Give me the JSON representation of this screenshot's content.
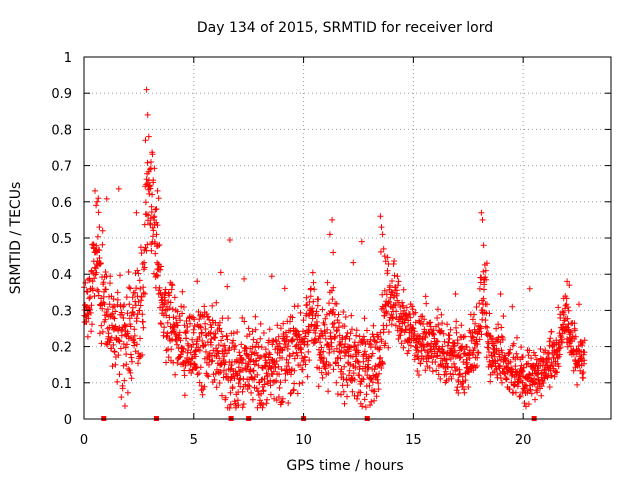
{
  "chart_data": {
    "type": "scatter",
    "title": "Day 134 of 2015, SRMTID for receiver lord",
    "xlabel": "GPS time / hours",
    "ylabel": "SRMTID / TECUs",
    "xlim": [
      0,
      24
    ],
    "ylim": [
      0,
      1
    ],
    "xticks": [
      "0",
      "5",
      "10",
      "15",
      "20"
    ],
    "yticks": [
      "0",
      "0.1",
      "0.2",
      "0.3",
      "0.4",
      "0.5",
      "0.6",
      "0.7",
      "0.8",
      "0.9",
      "1"
    ],
    "grid": true,
    "marker": "+",
    "series_color": "#ff0000",
    "baseline_markers_x": [
      0.9,
      3.3,
      6.7,
      7.5,
      10.0,
      12.9,
      20.5
    ],
    "baseline_markers_y": 0,
    "envelope": {
      "x": [
        0.0,
        0.3,
        0.5,
        0.7,
        1.0,
        1.5,
        2.0,
        2.5,
        2.7,
        2.9,
        3.1,
        3.3,
        3.5,
        3.8,
        4.2,
        4.7,
        5.0,
        5.5,
        6.0,
        6.5,
        7.0,
        7.3,
        7.6,
        8.0,
        8.5,
        9.0,
        9.5,
        10.0,
        10.3,
        10.6,
        11.0,
        11.3,
        11.6,
        12.0,
        12.5,
        13.0,
        13.5,
        13.7,
        14.0,
        14.3,
        14.7,
        15.0,
        15.5,
        16.0,
        16.5,
        17.0,
        17.5,
        18.0,
        18.2,
        18.4,
        18.8,
        19.2,
        19.6,
        20.0,
        20.5,
        21.0,
        21.5,
        21.9,
        22.2,
        22.5,
        22.8
      ],
      "y": [
        0.28,
        0.33,
        0.45,
        0.4,
        0.27,
        0.24,
        0.22,
        0.26,
        0.35,
        0.62,
        0.55,
        0.48,
        0.33,
        0.26,
        0.22,
        0.2,
        0.22,
        0.2,
        0.19,
        0.15,
        0.13,
        0.17,
        0.16,
        0.14,
        0.15,
        0.16,
        0.17,
        0.2,
        0.28,
        0.25,
        0.18,
        0.26,
        0.18,
        0.16,
        0.15,
        0.14,
        0.15,
        0.32,
        0.34,
        0.3,
        0.26,
        0.22,
        0.21,
        0.19,
        0.18,
        0.17,
        0.16,
        0.24,
        0.34,
        0.2,
        0.17,
        0.15,
        0.12,
        0.11,
        0.13,
        0.13,
        0.17,
        0.28,
        0.22,
        0.16,
        0.17
      ]
    },
    "spread": {
      "x": [
        0.0,
        3.0,
        3.5,
        13.7,
        14.5,
        18.3,
        19.0,
        24.0
      ],
      "y": [
        0.08,
        0.16,
        0.1,
        0.1,
        0.06,
        0.09,
        0.06,
        0.06
      ]
    },
    "point_count": 2200,
    "peak_points": {
      "x": [
        2.8,
        2.85,
        2.9,
        2.95,
        3.0,
        3.05,
        3.1,
        3.15,
        3.2,
        3.3,
        3.35,
        3.4,
        0.5,
        0.55,
        0.6,
        0.65,
        0.45,
        0.7,
        11.3,
        11.35,
        11.2,
        13.5,
        13.55,
        13.6,
        13.65,
        13.7,
        18.1,
        18.15,
        18.2,
        18.3,
        18.35,
        20.3,
        22.0,
        22.1
      ],
      "y": [
        0.77,
        0.91,
        0.84,
        0.78,
        0.69,
        0.71,
        0.62,
        0.66,
        0.56,
        0.51,
        0.63,
        0.61,
        0.63,
        0.59,
        0.6,
        0.61,
        0.48,
        0.53,
        0.55,
        0.46,
        0.51,
        0.56,
        0.53,
        0.51,
        0.47,
        0.45,
        0.57,
        0.55,
        0.48,
        0.41,
        0.43,
        0.36,
        0.38,
        0.37
      ]
    }
  }
}
